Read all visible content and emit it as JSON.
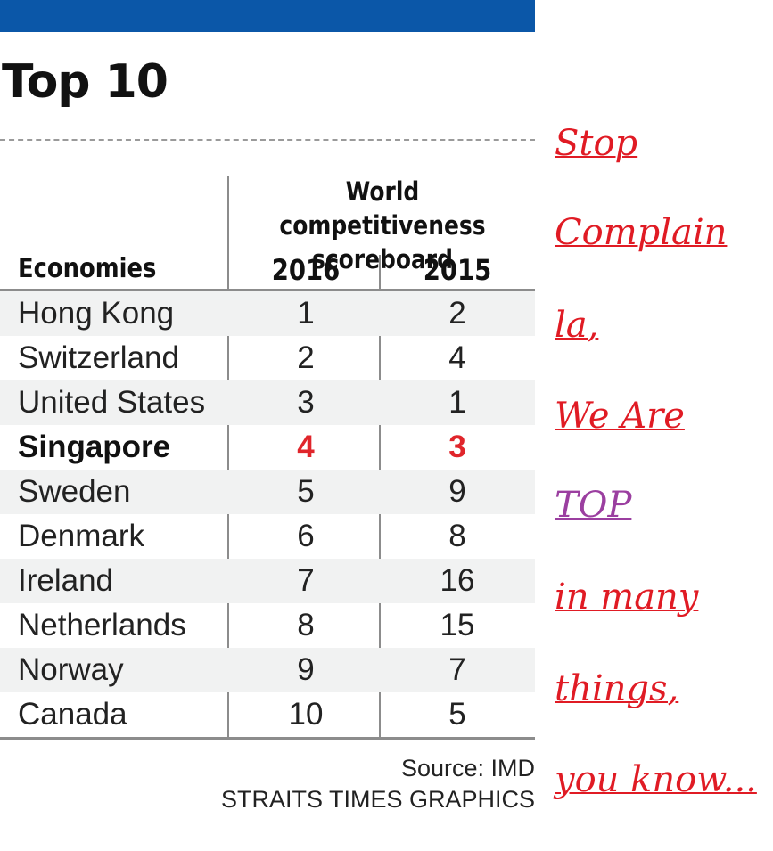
{
  "title": "Top 10",
  "header": {
    "group_line1": "World competitiveness",
    "group_line2": "scoreboard",
    "economies": "Economies",
    "year_a": "2016",
    "year_b": "2015"
  },
  "chart_data": {
    "type": "table",
    "columns": [
      "Economies",
      "2016",
      "2015"
    ],
    "rows": [
      {
        "economy": "Hong Kong",
        "y2016": "1",
        "y2015": "2",
        "highlight": false
      },
      {
        "economy": "Switzerland",
        "y2016": "2",
        "y2015": "4",
        "highlight": false
      },
      {
        "economy": "United States",
        "y2016": "3",
        "y2015": "1",
        "highlight": false
      },
      {
        "economy": "Singapore",
        "y2016": "4",
        "y2015": "3",
        "highlight": true
      },
      {
        "economy": "Sweden",
        "y2016": "5",
        "y2015": "9",
        "highlight": false
      },
      {
        "economy": "Denmark",
        "y2016": "6",
        "y2015": "8",
        "highlight": false
      },
      {
        "economy": "Ireland",
        "y2016": "7",
        "y2015": "16",
        "highlight": false
      },
      {
        "economy": "Netherlands",
        "y2016": "8",
        "y2015": "15",
        "highlight": false
      },
      {
        "economy": "Norway",
        "y2016": "9",
        "y2015": "7",
        "highlight": false
      },
      {
        "economy": "Canada",
        "y2016": "10",
        "y2015": "5",
        "highlight": false
      }
    ],
    "highlight_color": "#e0252b"
  },
  "source": {
    "line1": "Source: IMD",
    "line2": "STRAITS TIMES GRAPHICS"
  },
  "annotation": {
    "lines": [
      "Stop",
      "Complain ",
      "la, ",
      "We Are ",
      "TOP",
      "in many ",
      "things, ",
      "you know..."
    ],
    "color": "#e01b24",
    "accent_color": "#9b3fa0"
  },
  "colors": {
    "top_bar": "#0b57a8"
  }
}
